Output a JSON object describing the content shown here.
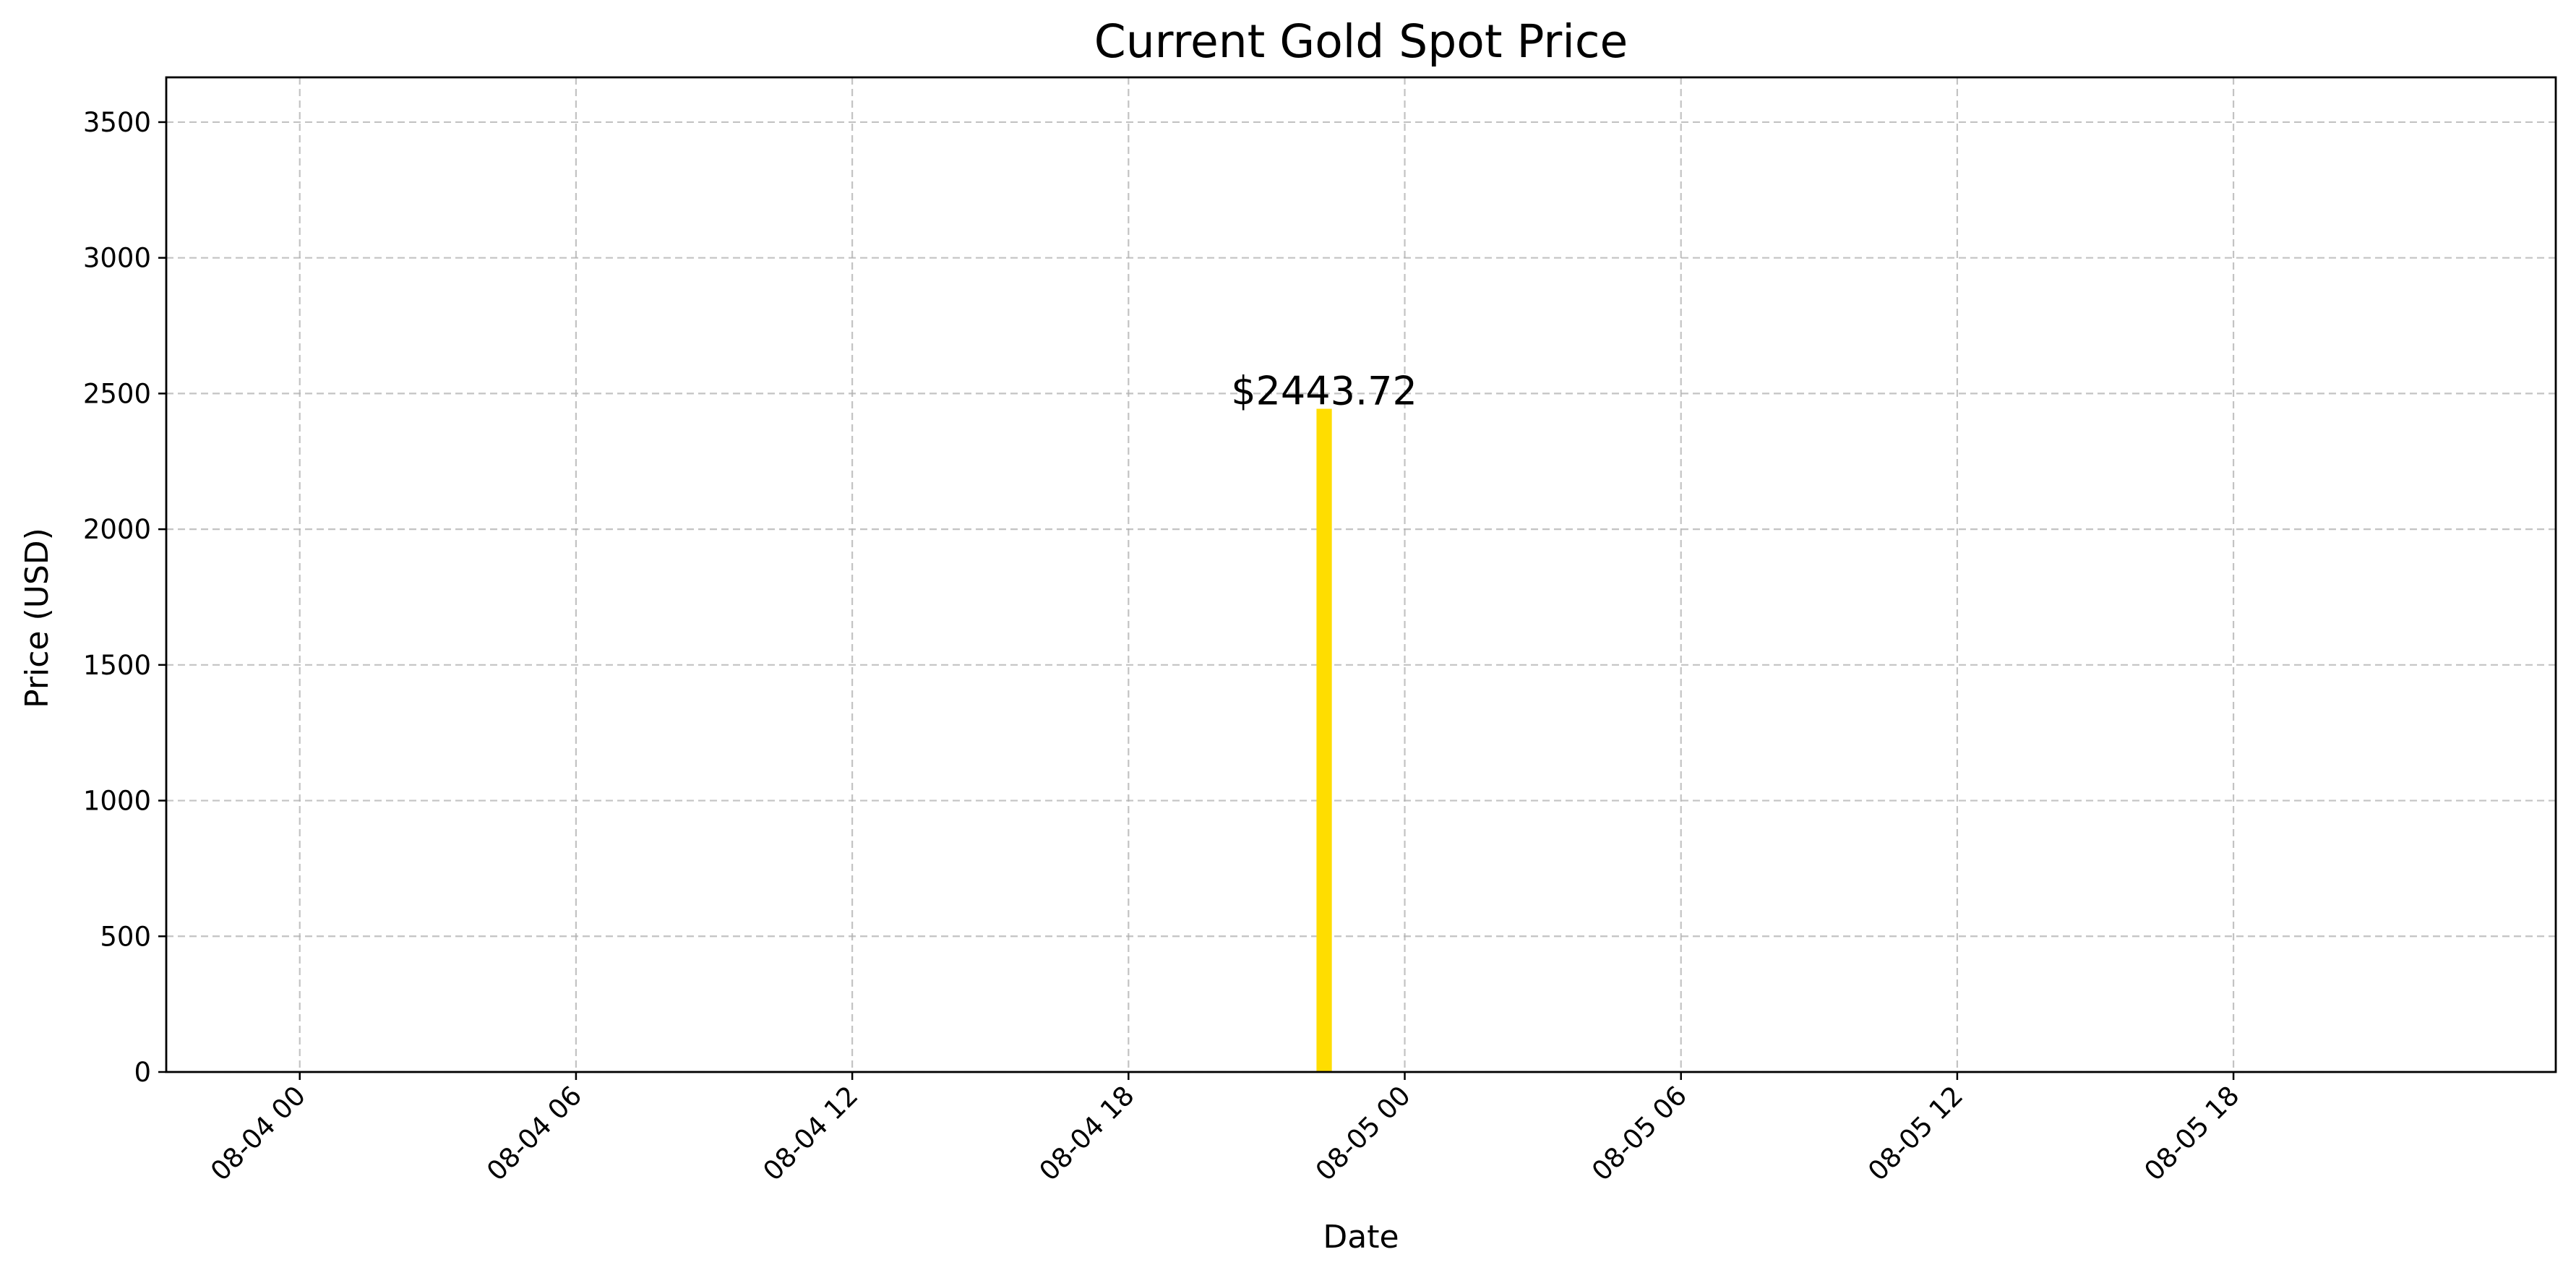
{
  "chart_data": {
    "type": "bar",
    "title": "Current Gold Spot Price",
    "xlabel": "Date",
    "ylabel": "Price (USD)",
    "x_axis_type": "datetime",
    "xlim": [
      "2024-08-03T21:06",
      "2024-08-06T01:00"
    ],
    "ylim": [
      0,
      3665
    ],
    "x_ticks": [
      {
        "value": "2024-08-04T00:00",
        "label": "08-04 00"
      },
      {
        "value": "2024-08-04T06:00",
        "label": "08-04 06"
      },
      {
        "value": "2024-08-04T12:00",
        "label": "08-04 12"
      },
      {
        "value": "2024-08-04T18:00",
        "label": "08-04 18"
      },
      {
        "value": "2024-08-05T00:00",
        "label": "08-05 00"
      },
      {
        "value": "2024-08-05T06:00",
        "label": "08-05 06"
      },
      {
        "value": "2024-08-05T12:00",
        "label": "08-05 12"
      },
      {
        "value": "2024-08-05T18:00",
        "label": "08-05 18"
      }
    ],
    "y_ticks": [
      {
        "value": 0,
        "label": "0"
      },
      {
        "value": 500,
        "label": "500"
      },
      {
        "value": 1000,
        "label": "1000"
      },
      {
        "value": 1500,
        "label": "1500"
      },
      {
        "value": 2000,
        "label": "2000"
      },
      {
        "value": 2500,
        "label": "2500"
      },
      {
        "value": 3000,
        "label": "3000"
      },
      {
        "value": 3500,
        "label": "3500"
      }
    ],
    "bars": [
      {
        "x": "2024-08-04T22:15",
        "value": 2443.72,
        "label": "$2443.72",
        "color": "#ffdd00"
      }
    ],
    "grid": true,
    "grid_style": "dashed",
    "legend": "none"
  }
}
